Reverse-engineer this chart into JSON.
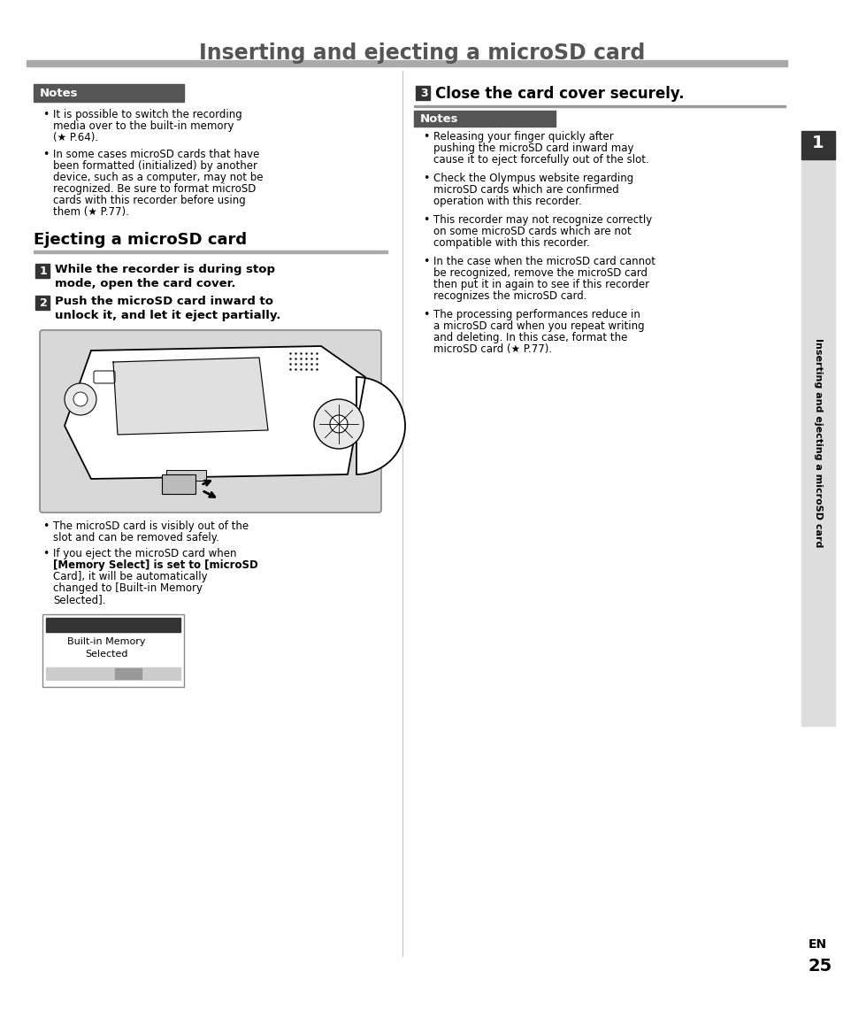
{
  "page_title": "Inserting and ejecting a microSD card",
  "page_number": "25",
  "bg_color": "#ffffff",
  "notes_bg_color": "#555555",
  "step_number_bg": "#333333",
  "section_title": "Ejecting a microSD card",
  "left_notes_title": "Notes",
  "left_notes_bullets": [
    "It is possible to switch the recording\nmedia over to the built-in memory\n(★ P.64).",
    "In some cases microSD cards that have\nbeen formatted (initialized) by another\ndevice, such as a computer, may not be\nrecognized. Be sure to format microSD\ncards with this recorder before using\nthem (★ P.77)."
  ],
  "step1_label": "1",
  "step1_text": "While the recorder is during stop\nmode, open the card cover.",
  "step2_label": "2",
  "step2_text": "Push the microSD card inward to\nunlock it, and let it eject partially.",
  "step3_label": "3",
  "step3_text": "Close the card cover securely.",
  "left_bullets_after_image": [
    "The microSD card is visibly out of the\nslot and can be removed safely.",
    "If you eject the microSD card when\n[Memory Select] is set to [microSD\nCard], it will be automatically\nchanged to [Built-in Memory\nSelected]."
  ],
  "right_notes_title": "Notes",
  "right_notes_bullets": [
    "Releasing your finger quickly after\npushing the microSD card inward may\ncause it to eject forcefully out of the slot.",
    "Check the Olympus website regarding\nmicroSD cards which are confirmed\noperation with this recorder.",
    "This recorder may not recognize correctly\non some microSD cards which are not\ncompatible with this recorder.",
    "In the case when the microSD card cannot\nbe recognized, remove the microSD card\nthen put it in again to see if this recorder\nrecognizes the microSD card.",
    "The processing performances reduce in\na microSD card when you repeat writing\nand deleting. In this case, format the\nmicroSD card (★ P.77)."
  ],
  "sidebar_text": "Inserting and ejecting a microSD card",
  "sidebar_number": "1",
  "en_label": "EN"
}
